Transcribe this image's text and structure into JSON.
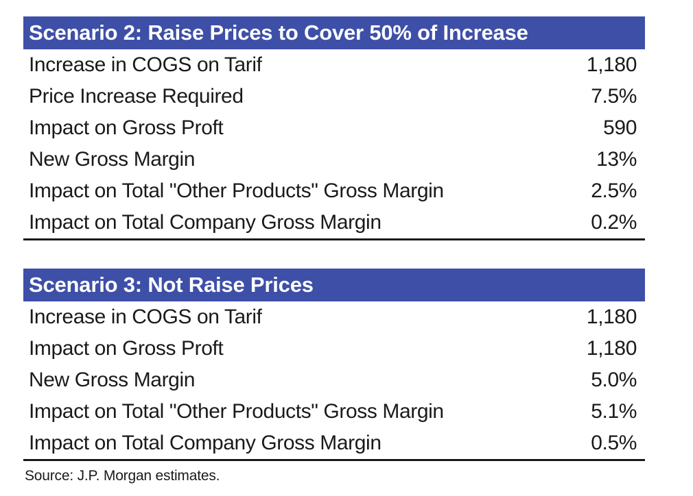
{
  "scenario2": {
    "title": "Scenario 2: Raise Prices to Cover 50% of Increase",
    "rows": [
      {
        "label": "Increase in COGS on Tarif",
        "value": "1,180"
      },
      {
        "label": "Price Increase Required",
        "value": "7.5%"
      },
      {
        "label": "Impact on Gross Proft",
        "value": "590"
      },
      {
        "label": "New Gross Margin",
        "value": "13%"
      },
      {
        "label": "Impact on Total \"Other Products\" Gross Margin",
        "value": "2.5%"
      },
      {
        "label": "Impact on Total Company Gross Margin",
        "value": "0.2%"
      }
    ]
  },
  "scenario3": {
    "title": "Scenario 3: Not Raise Prices",
    "rows": [
      {
        "label": "Increase in COGS on Tarif",
        "value": "1,180"
      },
      {
        "label": "Impact on Gross Proft",
        "value": "1,180"
      },
      {
        "label": "New Gross Margin",
        "value": "5.0%"
      },
      {
        "label": "Impact on Total \"Other Products\" Gross Margin",
        "value": "5.1%"
      },
      {
        "label": "Impact on Total Company Gross Margin",
        "value": "0.5%"
      }
    ]
  },
  "source": "Source: J.P. Morgan estimates."
}
